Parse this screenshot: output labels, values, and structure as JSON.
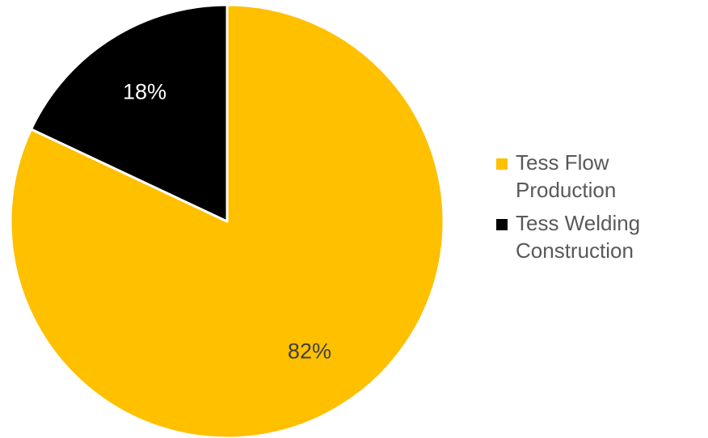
{
  "chart_data": {
    "type": "pie",
    "categories": [
      "Tess Flow Production",
      "Tess Welding Construction"
    ],
    "values": [
      82,
      18
    ],
    "data_labels": [
      "82%",
      "18%"
    ],
    "colors": [
      "#FFC000",
      "#000000"
    ],
    "label_colors": [
      "#404040",
      "#ffffff"
    ],
    "start_angle_deg": 0,
    "direction": "clockwise",
    "legend": "right"
  },
  "legend": {
    "items": [
      {
        "label": "Tess Flow Production",
        "color": "#FFC000"
      },
      {
        "label": "Tess Welding Construction",
        "color": "#000000"
      }
    ]
  }
}
